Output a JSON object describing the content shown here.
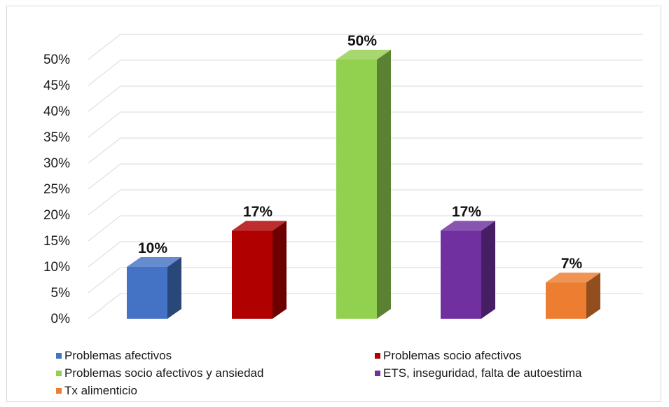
{
  "chart_data": {
    "type": "bar",
    "title": "",
    "xlabel": "",
    "ylabel": "",
    "ylim": [
      0,
      50
    ],
    "y_ticks": [
      "0%",
      "5%",
      "10%",
      "15%",
      "20%",
      "25%",
      "30%",
      "35%",
      "40%",
      "45%",
      "50%"
    ],
    "grid": true,
    "legend_position": "bottom",
    "categories": [
      "Problemas afectivos",
      "Problemas socio afectivos",
      "Problemas socio afectivos y ansiedad",
      "ETS, inseguridad, falta de autoestima",
      "Tx alimenticio"
    ],
    "values": [
      10,
      17,
      50,
      17,
      7
    ],
    "data_labels": [
      "10%",
      "17%",
      "50%",
      "17%",
      "7%"
    ],
    "colors": [
      "#4472c4",
      "#b00000",
      "#92d050",
      "#7030a0",
      "#ed7d31"
    ]
  }
}
